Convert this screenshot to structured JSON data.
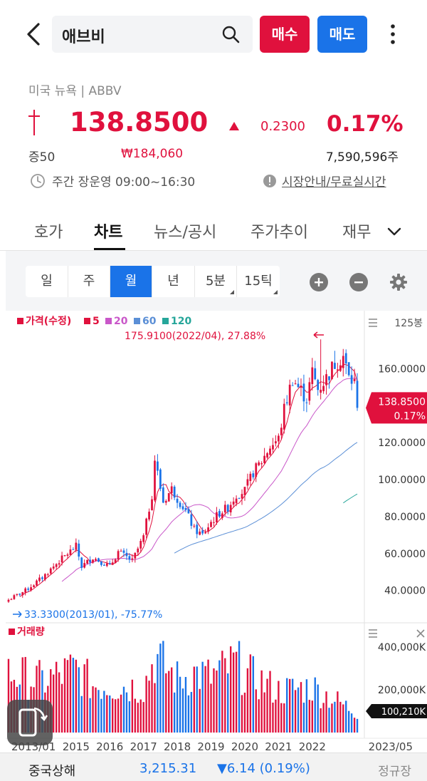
{
  "header": {
    "stock_name": "애브비",
    "buy_label": "매수",
    "sell_label": "매도"
  },
  "quote": {
    "market": "미국 뉴욕 | ABBV",
    "price": "138.8500",
    "change": "0.2300",
    "change_pct": "0.17%",
    "margin": "증50",
    "krw_price": "₩184,060",
    "volume": "7,590,596주",
    "hours": "주간 장운영 09:00~16:30",
    "info_link": "시장안내/무료실시간",
    "up_color": "#e0113d",
    "down_color": "#1a73e8"
  },
  "tabs": [
    "호가",
    "차트",
    "뉴스/공시",
    "주가추이",
    "재무"
  ],
  "active_tab": "차트",
  "periods": [
    "일",
    "주",
    "월",
    "년",
    "5분",
    "15틱"
  ],
  "selected_period": "월",
  "chart_data": {
    "type": "candlestick",
    "interval": "monthly",
    "bar_count_label": "125봉",
    "legend": [
      {
        "name": "가격(수정)",
        "color": "#e0113d"
      },
      {
        "name": "5",
        "color": "#e0113d"
      },
      {
        "name": "20",
        "color": "#c957c9"
      },
      {
        "name": "60",
        "color": "#5b8fd6"
      },
      {
        "name": "120",
        "color": "#26a69a"
      }
    ],
    "high_annotation": "175.9100(2022/04), 27.88%",
    "low_annotation": "33.3300(2013/01), -75.77%",
    "price_axis": {
      "ylim": [
        33.33,
        176.0
      ],
      "ticks": [
        "160.0000",
        "120.0000",
        "100.0000",
        "80.0000",
        "60.0000",
        "40.0000"
      ],
      "tick_values": [
        160,
        120,
        100,
        80,
        60,
        40
      ]
    },
    "current_price": "138.8500",
    "current_pct": "0.17%",
    "volume_title": "거래량",
    "volume_axis": {
      "ticks": [
        "400,000K",
        "200,000K"
      ],
      "tick_values": [
        400000,
        200000
      ]
    },
    "current_volume": "100,210K",
    "x_labels": [
      "2013/01",
      "2015",
      "2016",
      "2017",
      "2018",
      "2019",
      "2020",
      "2021",
      "2022",
      "2023/05"
    ],
    "x_label_positions": [
      0,
      24,
      36,
      48,
      60,
      72,
      84,
      96,
      108,
      124
    ],
    "close_path": [
      [
        0,
        35
      ],
      [
        6,
        40
      ],
      [
        12,
        47
      ],
      [
        18,
        56
      ],
      [
        24,
        64
      ],
      [
        26,
        53
      ],
      [
        30,
        58
      ],
      [
        36,
        53
      ],
      [
        39,
        61
      ],
      [
        44,
        56
      ],
      [
        48,
        69
      ],
      [
        51,
        92
      ],
      [
        52,
        111
      ],
      [
        55,
        88
      ],
      [
        58,
        95
      ],
      [
        60,
        90
      ],
      [
        63,
        83
      ],
      [
        66,
        73
      ],
      [
        69,
        70
      ],
      [
        72,
        77
      ],
      [
        75,
        82
      ],
      [
        78,
        85
      ],
      [
        81,
        92
      ],
      [
        84,
        94
      ],
      [
        87,
        104
      ],
      [
        90,
        110
      ],
      [
        93,
        118
      ],
      [
        96,
        122
      ],
      [
        98,
        138
      ],
      [
        101,
        155
      ],
      [
        103,
        150
      ],
      [
        106,
        144
      ],
      [
        108,
        158
      ],
      [
        110,
        149
      ],
      [
        113,
        155
      ],
      [
        116,
        163
      ],
      [
        119,
        167
      ],
      [
        121,
        155
      ],
      [
        123,
        152
      ],
      [
        124,
        138.85
      ]
    ],
    "volume_profile": [
      [
        0,
        300
      ],
      [
        12,
        260
      ],
      [
        24,
        320
      ],
      [
        30,
        240
      ],
      [
        48,
        230
      ],
      [
        52,
        380
      ],
      [
        60,
        270
      ],
      [
        66,
        300
      ],
      [
        72,
        280
      ],
      [
        81,
        350
      ],
      [
        84,
        300
      ],
      [
        96,
        210
      ],
      [
        108,
        230
      ],
      [
        124,
        100
      ]
    ]
  },
  "footer": {
    "index_name": "중국상해",
    "index_value": "3,215.31",
    "index_change": "▼6.14 (0.19%)",
    "session": "정규장"
  }
}
